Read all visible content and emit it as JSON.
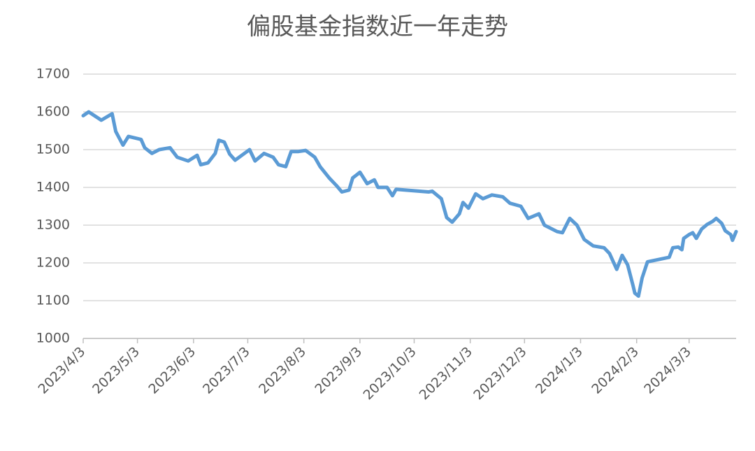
{
  "chart_data": {
    "type": "line",
    "title": "偏股基金指数近一年走势",
    "x": [
      "2023/4/3",
      "2023/4/6",
      "2023/4/13",
      "2023/4/19",
      "2023/4/21",
      "2023/4/25",
      "2023/4/28",
      "2023/5/5",
      "2023/5/7",
      "2023/5/11",
      "2023/5/15",
      "2023/5/21",
      "2023/5/25",
      "2023/5/31",
      "2023/6/5",
      "2023/6/7",
      "2023/6/11",
      "2023/6/15",
      "2023/6/17",
      "2023/6/20",
      "2023/6/23",
      "2023/6/26",
      "2023/7/4",
      "2023/7/7",
      "2023/7/12",
      "2023/7/17",
      "2023/7/20",
      "2023/7/24",
      "2023/7/27",
      "2023/7/31",
      "2023/8/4",
      "2023/8/9",
      "2023/8/12",
      "2023/8/17",
      "2023/8/21",
      "2023/8/24",
      "2023/8/28",
      "2023/8/30",
      "2023/9/3",
      "2023/9/7",
      "2023/9/11",
      "2023/9/13",
      "2023/9/18",
      "2023/9/21",
      "2023/9/23",
      "2023/10/11",
      "2023/10/13",
      "2023/10/18",
      "2023/10/21",
      "2023/10/24",
      "2023/10/28",
      "2023/10/30",
      "2023/11/2",
      "2023/11/6",
      "2023/11/10",
      "2023/11/15",
      "2023/11/21",
      "2023/11/25",
      "2023/12/1",
      "2023/12/5",
      "2023/12/11",
      "2023/12/14",
      "2023/12/21",
      "2023/12/24",
      "2023/12/28",
      "2024/1/1",
      "2024/1/5",
      "2024/1/10",
      "2024/1/16",
      "2024/1/19",
      "2024/1/23",
      "2024/1/26",
      "2024/1/29",
      "2024/2/1",
      "2024/2/2",
      "2024/2/4",
      "2024/2/6",
      "2024/2/9",
      "2024/2/21",
      "2024/2/23",
      "2024/2/26",
      "2024/2/28",
      "2024/2/29",
      "2024/3/3",
      "2024/3/5",
      "2024/3/7",
      "2024/3/10",
      "2024/3/13",
      "2024/3/16",
      "2024/3/18",
      "2024/3/21",
      "2024/3/23",
      "2024/3/26",
      "2024/3/27",
      "2024/3/29"
    ],
    "series": [
      {
        "color": "#5b9bd5",
        "values": [
          1590,
          1600,
          1578,
          1595,
          1548,
          1512,
          1535,
          1527,
          1505,
          1490,
          1500,
          1505,
          1480,
          1470,
          1485,
          1460,
          1465,
          1490,
          1525,
          1520,
          1488,
          1472,
          1500,
          1470,
          1490,
          1480,
          1460,
          1455,
          1495,
          1495,
          1498,
          1480,
          1455,
          1425,
          1405,
          1388,
          1393,
          1425,
          1440,
          1410,
          1420,
          1400,
          1400,
          1378,
          1395,
          1388,
          1390,
          1370,
          1320,
          1308,
          1330,
          1360,
          1345,
          1383,
          1370,
          1380,
          1375,
          1358,
          1350,
          1318,
          1330,
          1300,
          1283,
          1280,
          1318,
          1300,
          1262,
          1245,
          1240,
          1225,
          1183,
          1220,
          1195,
          1140,
          1120,
          1112,
          1160,
          1203,
          1215,
          1240,
          1242,
          1235,
          1265,
          1275,
          1280,
          1265,
          1290,
          1302,
          1310,
          1318,
          1305,
          1285,
          1275,
          1260,
          1283
        ]
      }
    ],
    "xlim": [
      "2023/4/3",
      "2024/3/29"
    ],
    "xticks": [
      "2023/4/3",
      "2023/5/3",
      "2023/6/3",
      "2023/7/3",
      "2023/8/3",
      "2023/9/3",
      "2023/10/3",
      "2023/11/3",
      "2023/12/3",
      "2024/1/3",
      "2024/2/3",
      "2024/3/3"
    ],
    "ylim": [
      1000,
      1700
    ],
    "yticks": [
      1000,
      1100,
      1200,
      1300,
      1400,
      1500,
      1600,
      1700
    ],
    "grid": true
  }
}
